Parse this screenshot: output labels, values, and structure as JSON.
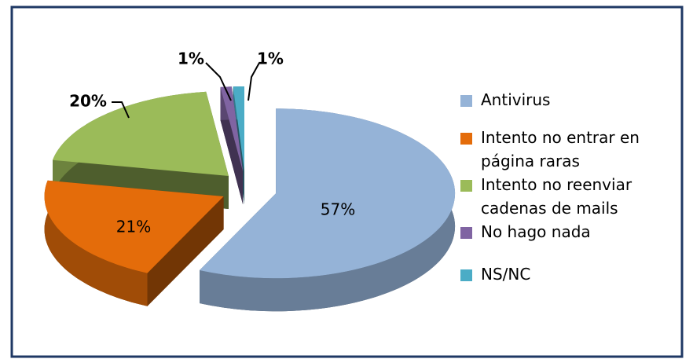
{
  "chart_data": {
    "type": "pie",
    "categories": [
      "Antivirus",
      "Intento no entrar en página raras",
      "Intento no reenviar cadenas de mails",
      "No hago nada",
      "NS/NC"
    ],
    "values": [
      57,
      21,
      20,
      1,
      1
    ],
    "value_labels": [
      "57%",
      "21%",
      "20%",
      "1%",
      "1%"
    ],
    "colors": [
      "#95b3d7",
      "#e46c0a",
      "#9bbb59",
      "#8064a2",
      "#4bacc6"
    ],
    "legend": "right"
  }
}
